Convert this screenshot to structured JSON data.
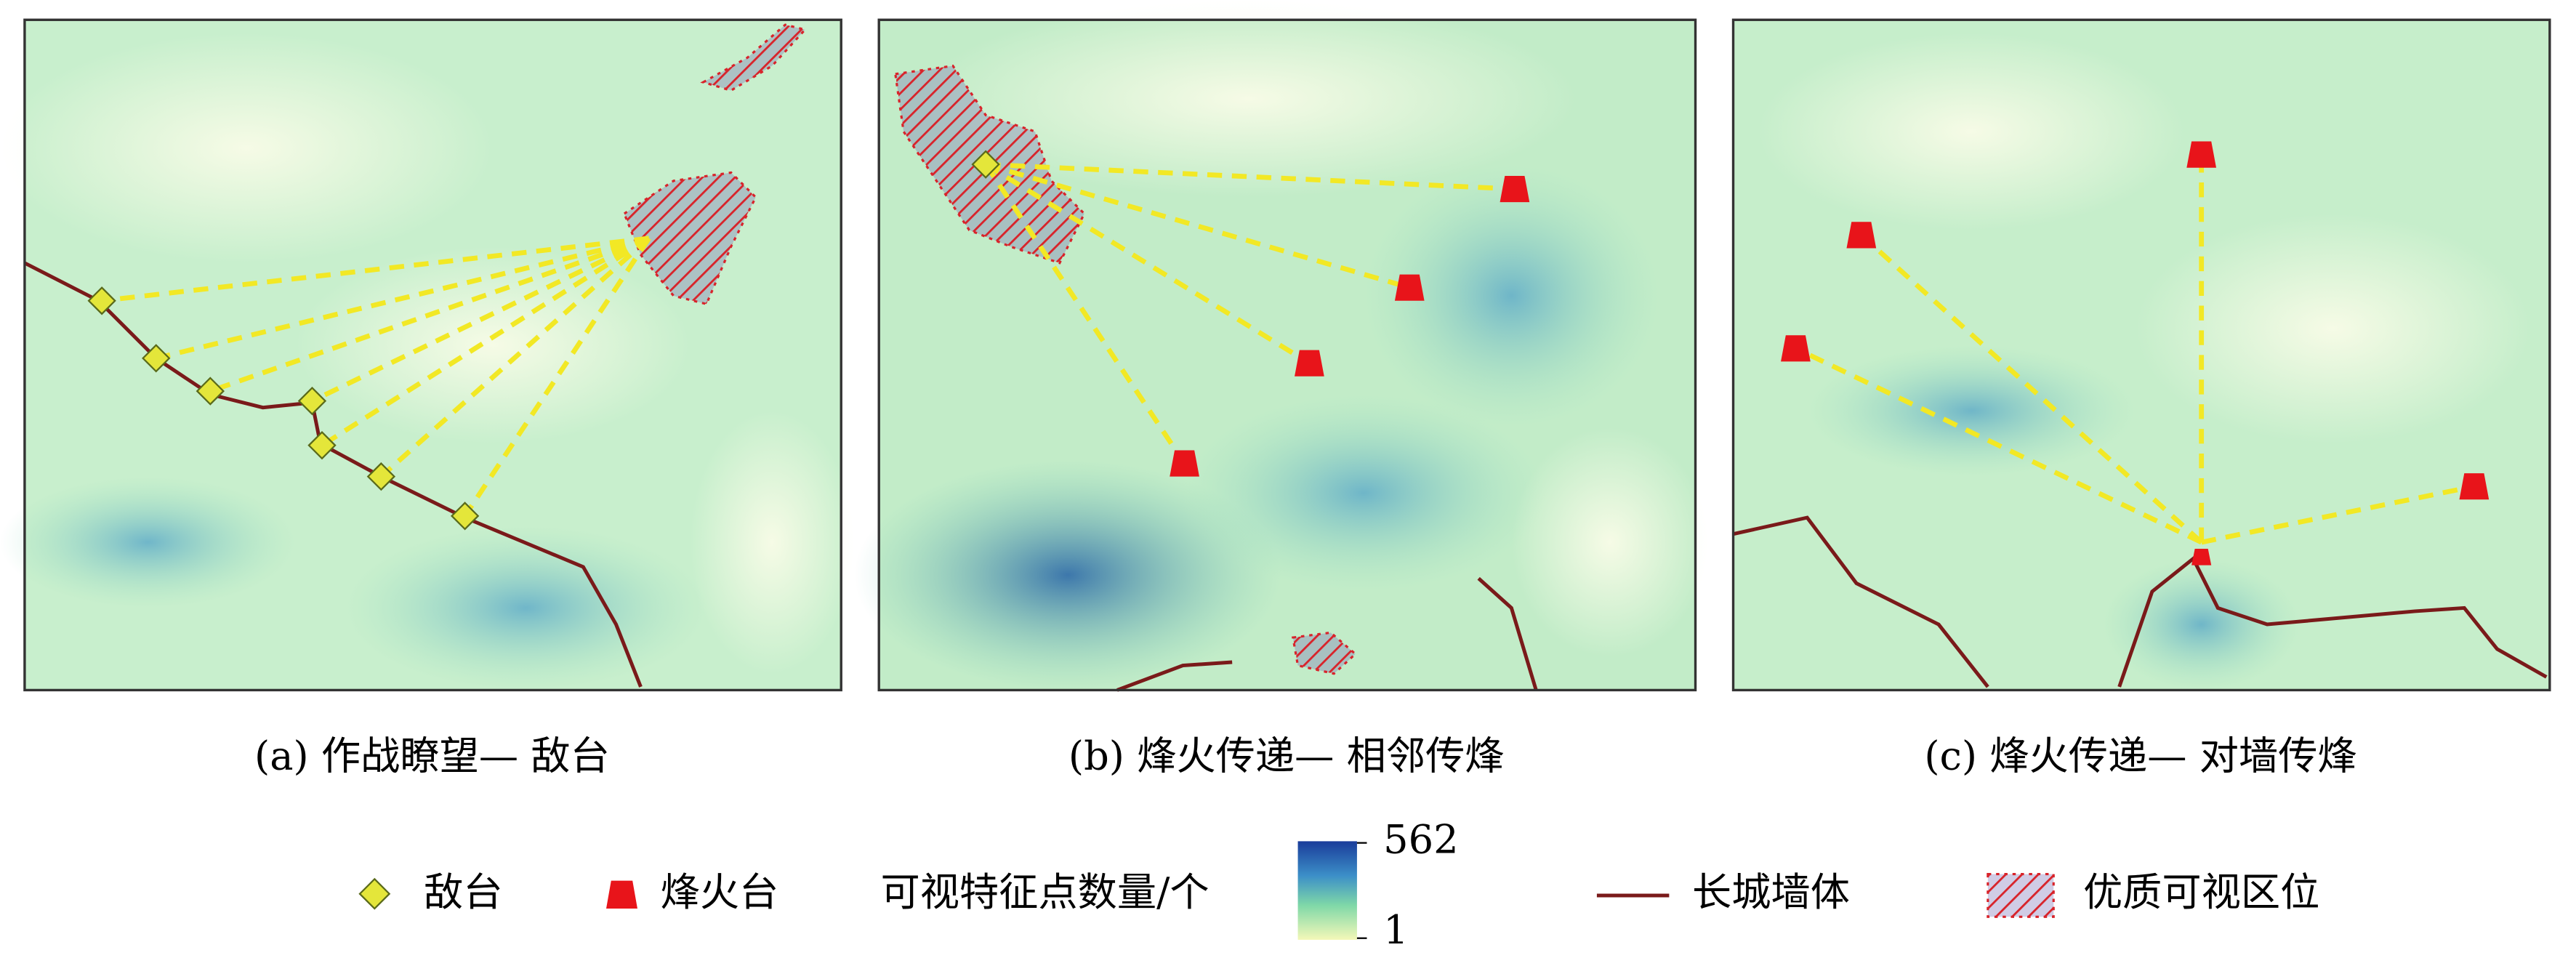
{
  "panels": [
    {
      "caption": "(a) 作战瞭望— 敌台"
    },
    {
      "caption": "(b) 烽火传递— 相邻传烽"
    },
    {
      "caption": "(c) 烽火传递— 对墙传烽"
    }
  ],
  "legend": {
    "enemy_tower": "敌台",
    "beacon_tower": "烽火台",
    "colorbar": {
      "label": "可视特征点数量/个",
      "max": 562,
      "min": 1
    },
    "wall": "长城墙体",
    "optimal_zone": "优质可视区位"
  }
}
